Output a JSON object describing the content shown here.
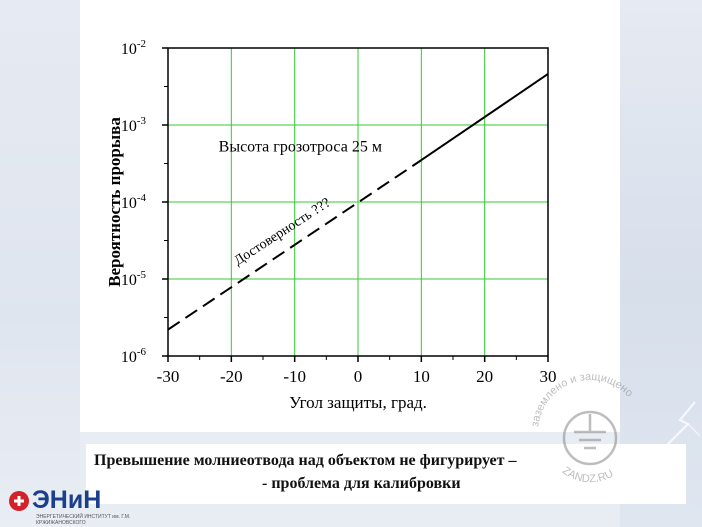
{
  "chart_data": {
    "type": "line",
    "xlabel": "Угол защиты, град.",
    "ylabel": "Вероятность прорыва",
    "xlim": [
      -30,
      30
    ],
    "ylim": [
      1e-06,
      0.01
    ],
    "y_scale": "log",
    "grid": true,
    "x_ticks": [
      "-30",
      "-20",
      "-10",
      "0",
      "10",
      "20",
      "30"
    ],
    "y_ticks": [
      {
        "base": "10",
        "exp": "-6",
        "value": 1e-06
      },
      {
        "base": "10",
        "exp": "-5",
        "value": 1e-05
      },
      {
        "base": "10",
        "exp": "-4",
        "value": 0.0001
      },
      {
        "base": "10",
        "exp": "-3",
        "value": 0.001
      },
      {
        "base": "10",
        "exp": "-2",
        "value": 0.01
      }
    ],
    "series": [
      {
        "style": "dashed",
        "x": [
          -30,
          10
        ],
        "y": [
          2.2e-06,
          0.00035
        ]
      },
      {
        "style": "solid",
        "x": [
          10,
          30
        ],
        "y": [
          0.00035,
          0.0046
        ]
      }
    ],
    "annotations": {
      "height_label": "Высота грозотроса 25 м",
      "reliability_label": "Достоверность ???"
    },
    "colors": {
      "grid": "#33cc33",
      "line": "#000000",
      "axis": "#000000"
    }
  },
  "caption": {
    "line1": "Превышение молниеотвода над объектом не фигурирует –",
    "line2": "- проблема для калибровки"
  },
  "logo": {
    "name": "ЭНиН",
    "subtitle": "ЭНЕРГЕТИЧЕСКИЙ ИНСТИТУТ им. Г.М. КРЖИЖАНОВСКОГО",
    "icon": "enin-logo-icon"
  },
  "watermark": {
    "text": "заземлено и защищено",
    "site": "ZANDZ.RU",
    "icon": "ground-symbol-icon"
  }
}
